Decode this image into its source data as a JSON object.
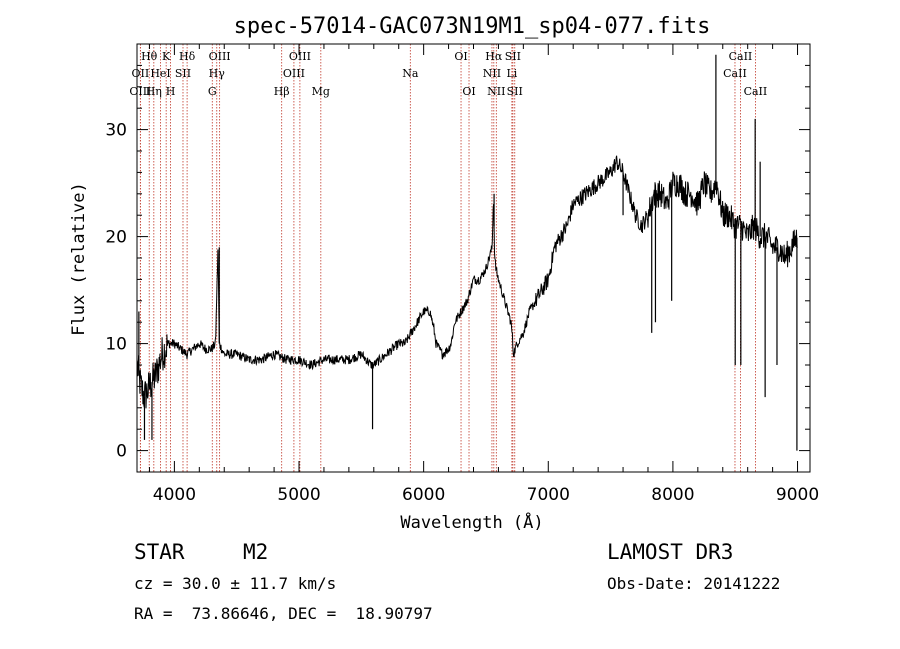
{
  "chart_data": {
    "type": "line",
    "title": "spec-57014-GAC073N19M1_sp04-077.fits",
    "xlabel": "Wavelength (Å)",
    "ylabel": "Flux (relative)",
    "xlim": [
      3700,
      9100
    ],
    "ylim": [
      -2,
      38
    ],
    "xticks": [
      4000,
      5000,
      6000,
      7000,
      8000,
      9000
    ],
    "yticks": [
      0,
      10,
      20,
      30
    ],
    "spectrum_profile": {
      "wavelength": [
        3700,
        3730,
        3760,
        3800,
        3850,
        3900,
        3950,
        4000,
        4050,
        4100,
        4150,
        4200,
        4250,
        4300,
        4330,
        4350,
        4360,
        4380,
        4400,
        4500,
        4600,
        4700,
        4800,
        4900,
        5000,
        5100,
        5200,
        5300,
        5400,
        5500,
        5580,
        5600,
        5700,
        5800,
        5850,
        5900,
        6000,
        6050,
        6080,
        6100,
        6150,
        6200,
        6220,
        6250,
        6300,
        6350,
        6400,
        6450,
        6500,
        6550,
        6560,
        6570,
        6580,
        6600,
        6650,
        6700,
        6710,
        6720,
        6750,
        6800,
        6850,
        6900,
        6950,
        7000,
        7050,
        7100,
        7150,
        7200,
        7300,
        7400,
        7500,
        7550,
        7600,
        7650,
        7700,
        7750,
        7800,
        7850,
        7900,
        7950,
        8000,
        8050,
        8100,
        8150,
        8200,
        8250,
        8300,
        8350,
        8400,
        8450,
        8500,
        8550,
        8600,
        8650,
        8700,
        8750,
        8800,
        8850,
        8900,
        8950,
        9000
      ],
      "flux": [
        8,
        6,
        5,
        6,
        7,
        9,
        10,
        10,
        9.5,
        9,
        9.5,
        10,
        9.5,
        9.5,
        10,
        19,
        10,
        9.5,
        9,
        9,
        8.5,
        8.5,
        9,
        8.5,
        8.5,
        8,
        8.5,
        8.5,
        8.5,
        9,
        8,
        8,
        9,
        10,
        10,
        11,
        13,
        13,
        11.5,
        10,
        9,
        9.5,
        10,
        12,
        13,
        14,
        16,
        16,
        17,
        19,
        24,
        18,
        17,
        16,
        14,
        12,
        11,
        9,
        10,
        11,
        13,
        14,
        15,
        16,
        19,
        20,
        21,
        23,
        24,
        25,
        26,
        27,
        26,
        24,
        22,
        21,
        22,
        24,
        24,
        23,
        25,
        25,
        24,
        24,
        23,
        25,
        24,
        25,
        22,
        22,
        21,
        21,
        20,
        21,
        20,
        20,
        19,
        19,
        18,
        19,
        20
      ]
    },
    "spikes": [
      {
        "wavelength": 3715,
        "flux": 13
      },
      {
        "wavelength": 3760,
        "flux": 1
      },
      {
        "wavelength": 3820,
        "flux": 1
      },
      {
        "wavelength": 4360,
        "flux": 19
      },
      {
        "wavelength": 5590,
        "flux": 2
      },
      {
        "wavelength": 6565,
        "flux": 24
      },
      {
        "wavelength": 7600,
        "flux": 22
      },
      {
        "wavelength": 7830,
        "flux": 11
      },
      {
        "wavelength": 7860,
        "flux": 12
      },
      {
        "wavelength": 7990,
        "flux": 14
      },
      {
        "wavelength": 8345,
        "flux": 37
      },
      {
        "wavelength": 8500,
        "flux": 8
      },
      {
        "wavelength": 8545,
        "flux": 8
      },
      {
        "wavelength": 8660,
        "flux": 31
      },
      {
        "wavelength": 8700,
        "flux": 27
      },
      {
        "wavelength": 8740,
        "flux": 5
      },
      {
        "wavelength": 8835,
        "flux": 8
      },
      {
        "wavelength": 8995,
        "flux": 0
      }
    ],
    "lines": [
      {
        "label": "Hθ",
        "wavelength": 3798,
        "row": 0
      },
      {
        "label": "OII",
        "wavelength": 3727,
        "row": 1
      },
      {
        "label": "OIII",
        "wavelength": 3727,
        "row": 2
      },
      {
        "label": "K",
        "wavelength": 3934,
        "row": 0
      },
      {
        "label": "HeI",
        "wavelength": 3889,
        "row": 1
      },
      {
        "label": "Hη",
        "wavelength": 3835,
        "row": 2
      },
      {
        "label": "SII",
        "wavelength": 4069,
        "row": 1
      },
      {
        "label": "H",
        "wavelength": 3969,
        "row": 2
      },
      {
        "label": "Hδ",
        "wavelength": 4102,
        "row": 0
      },
      {
        "label": "OIII",
        "wavelength": 4363,
        "row": 0
      },
      {
        "label": "Hγ",
        "wavelength": 4340,
        "row": 1
      },
      {
        "label": "G",
        "wavelength": 4304,
        "row": 2
      },
      {
        "label": "Hβ",
        "wavelength": 4861,
        "row": 2
      },
      {
        "label": "OIII",
        "wavelength": 5007,
        "row": 0
      },
      {
        "label": "OIII",
        "wavelength": 4959,
        "row": 1
      },
      {
        "label": "Mg",
        "wavelength": 5175,
        "row": 2
      },
      {
        "label": "Na",
        "wavelength": 5893,
        "row": 1
      },
      {
        "label": "OI",
        "wavelength": 6300,
        "row": 0
      },
      {
        "label": "OI",
        "wavelength": 6364,
        "row": 2
      },
      {
        "label": "Hα",
        "wavelength": 6563,
        "row": 0
      },
      {
        "label": "SII",
        "wavelength": 6716,
        "row": 0
      },
      {
        "label": "NII",
        "wavelength": 6548,
        "row": 1
      },
      {
        "label": "Li",
        "wavelength": 6708,
        "row": 1
      },
      {
        "label": "NII",
        "wavelength": 6583,
        "row": 2
      },
      {
        "label": "SII",
        "wavelength": 6731,
        "row": 2
      },
      {
        "label": "CaII",
        "wavelength": 8542,
        "row": 0
      },
      {
        "label": "CaII",
        "wavelength": 8498,
        "row": 1
      },
      {
        "label": "CaII",
        "wavelength": 8662,
        "row": 2
      }
    ]
  },
  "info": {
    "class": "STAR",
    "subclass": "M2",
    "survey": "LAMOST DR3",
    "cz": "cz = 30.0 ± 11.7 km/s",
    "obs_date": "Obs-Date: 20141222",
    "radec": "RA =  73.86646, DEC =  18.90797"
  },
  "colors": {
    "line_marker": "#c0392b",
    "spectrum": "#000000"
  }
}
